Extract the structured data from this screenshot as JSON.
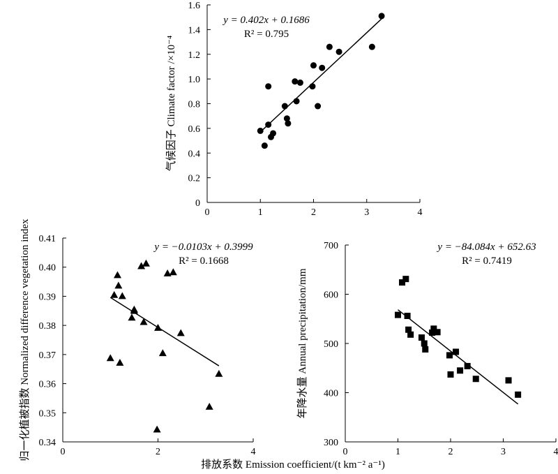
{
  "x_axis_label": "排放系数 Emission coefficient/(t km⁻² a⁻¹)",
  "chart_data": [
    {
      "type": "scatter",
      "ylabel": "气候因子 Climate factor /×10⁻⁴",
      "xlim": [
        0,
        4
      ],
      "ylim": [
        0,
        1.6
      ],
      "xticks": [
        "0",
        "1",
        "2",
        "3",
        "4"
      ],
      "yticks": [
        "0",
        "0.2",
        "0.4",
        "0.6",
        "0.8",
        "1.0",
        "1.2",
        "1.4",
        "1.6"
      ],
      "marker": "circle",
      "equation": "y = 0.402x  + 0.1686",
      "r2": "R² = 0.795",
      "trendline": {
        "slope": 0.402,
        "intercept": 0.1686,
        "x_range": [
          1.0,
          3.28
        ]
      },
      "x": [
        1.0,
        1.08,
        1.15,
        1.15,
        1.2,
        1.24,
        1.46,
        1.5,
        1.52,
        1.65,
        1.68,
        1.75,
        1.98,
        2.0,
        2.08,
        2.16,
        2.3,
        2.48,
        3.1,
        3.28
      ],
      "y": [
        0.58,
        0.46,
        0.94,
        0.63,
        0.53,
        0.56,
        0.78,
        0.68,
        0.64,
        0.98,
        0.82,
        0.97,
        0.94,
        1.11,
        0.78,
        1.09,
        1.26,
        1.22,
        1.26,
        1.51
      ]
    },
    {
      "type": "scatter",
      "ylabel": "归一化植被指数 Normalized difference vegetation index",
      "xlim": [
        0,
        4
      ],
      "ylim": [
        0.34,
        0.41
      ],
      "xticks": [
        "0",
        "2",
        "4"
      ],
      "yticks": [
        "0.34",
        "0.35",
        "0.36",
        "0.37",
        "0.38",
        "0.39",
        "0.40",
        "0.41"
      ],
      "marker": "triangle",
      "equation": "y = −0.0103x + 0.3999",
      "r2": "R² = 0.1668",
      "trendline": {
        "slope": -0.0103,
        "intercept": 0.3999,
        "x_range": [
          1.0,
          3.28
        ]
      },
      "x": [
        1.0,
        1.08,
        1.15,
        1.17,
        1.2,
        1.25,
        1.45,
        1.5,
        1.5,
        1.65,
        1.7,
        1.75,
        1.98,
        2.0,
        2.1,
        2.2,
        2.32,
        2.48,
        3.08,
        3.28
      ],
      "y": [
        0.3688,
        0.3905,
        0.3973,
        0.3937,
        0.3672,
        0.3901,
        0.3827,
        0.3855,
        0.385,
        0.4004,
        0.3812,
        0.4013,
        0.3443,
        0.3792,
        0.3705,
        0.3979,
        0.3983,
        0.3774,
        0.3521,
        0.3634
      ]
    },
    {
      "type": "scatter",
      "ylabel": "年降水量 Annual precipitation/mm",
      "xlim": [
        0,
        4
      ],
      "ylim": [
        300,
        700
      ],
      "xticks": [
        "0",
        "1",
        "2",
        "3",
        "4"
      ],
      "yticks": [
        "300",
        "400",
        "500",
        "600",
        "700"
      ],
      "marker": "square",
      "equation": "y = −84.084x + 652.63",
      "r2": "R² = 0.7419",
      "trendline": {
        "slope": -84.084,
        "intercept": 652.63,
        "x_range": [
          1.0,
          3.28
        ]
      },
      "x": [
        1.0,
        1.08,
        1.15,
        1.18,
        1.2,
        1.24,
        1.45,
        1.5,
        1.52,
        1.65,
        1.68,
        1.75,
        1.98,
        2.0,
        2.1,
        2.18,
        2.32,
        2.48,
        3.1,
        3.28
      ],
      "y": [
        558,
        624,
        631,
        556,
        528,
        518,
        512,
        500,
        488,
        522,
        530,
        523,
        476,
        437,
        483,
        445,
        454,
        428,
        425,
        396
      ]
    }
  ]
}
